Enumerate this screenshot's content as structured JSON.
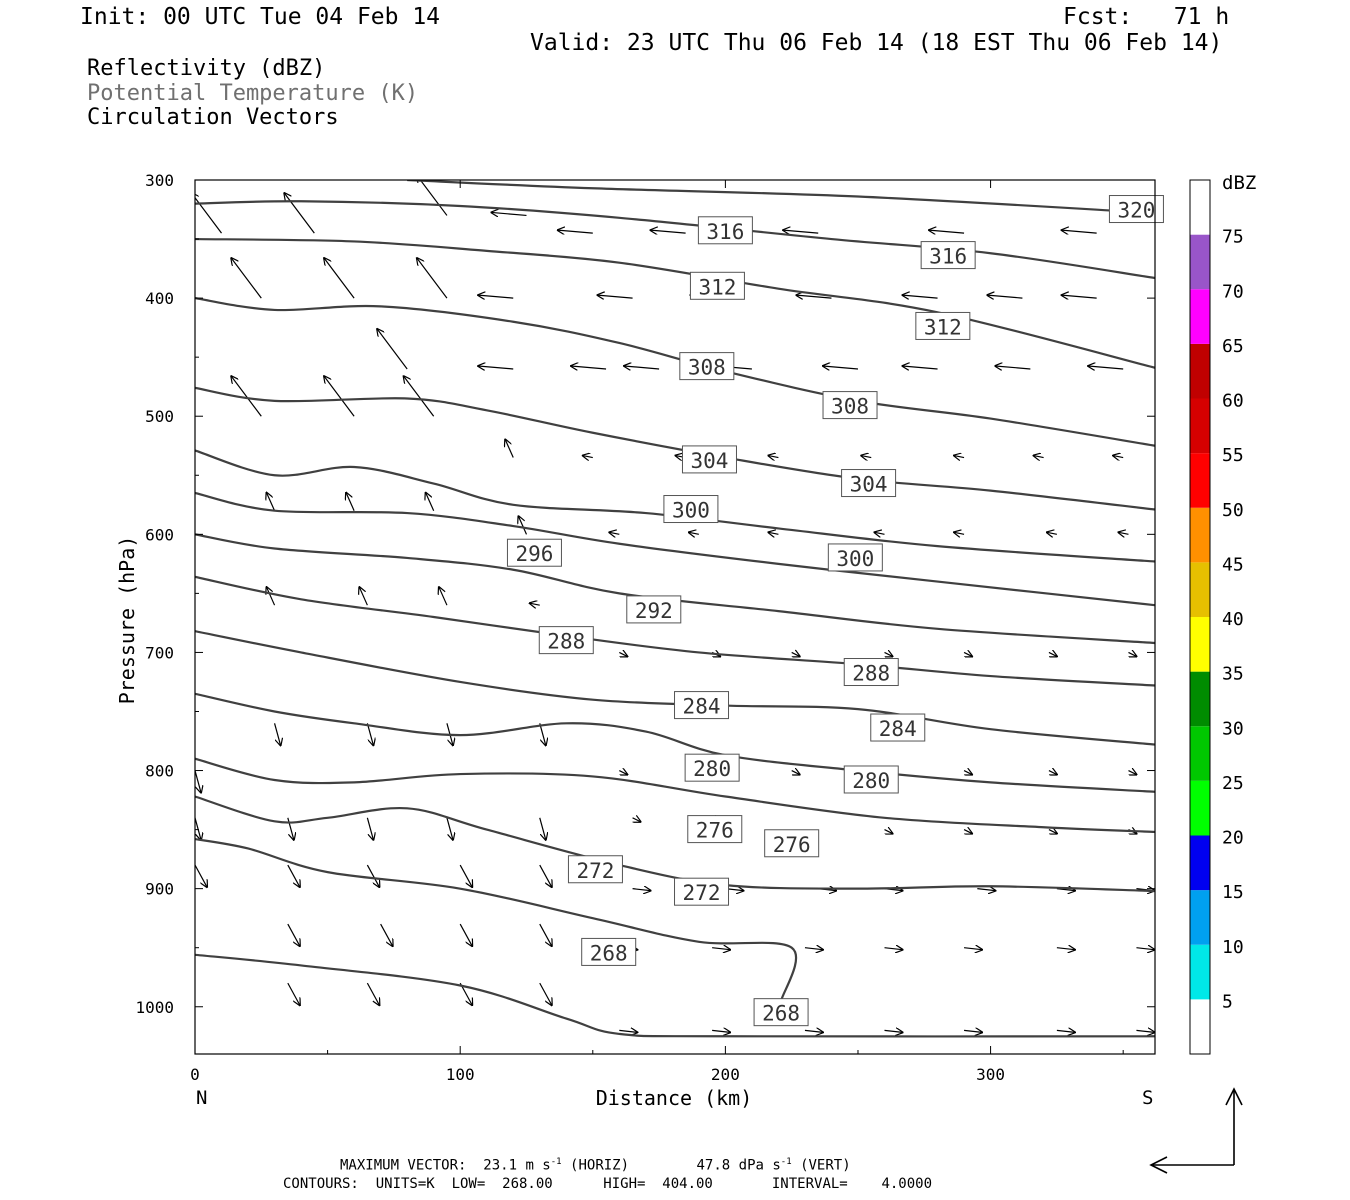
{
  "header": {
    "init": "Init: 00 UTC Tue 04 Feb 14",
    "fcst": "Fcst:   71 h",
    "valid": "Valid: 23 UTC Thu 06 Feb 14 (18 EST Thu 06 Feb 14)"
  },
  "legend_lines": {
    "reflectivity": "Reflectivity (dBZ)",
    "theta": "Potential Temperature (K)",
    "vectors": "Circulation Vectors"
  },
  "footer": {
    "max_vector_label": "MAXIMUM VECTOR:",
    "horiz_value": "23.1",
    "horiz_unit": "m s",
    "horiz_tag": "(HORIZ)",
    "vert_value": "47.8",
    "vert_unit": "dPa s",
    "vert_tag": "(VERT)",
    "contours_line": "CONTOURS:  UNITS=K  LOW=  268.00      HIGH=  404.00       INTERVAL=    4.0000"
  },
  "colors": {
    "contour": "#404040",
    "vector": "#000000",
    "colorbar": [
      "#ffffff",
      "#00e8e8",
      "#00a0f0",
      "#0000f0",
      "#00ff00",
      "#00c800",
      "#008c00",
      "#ffff00",
      "#e6c000",
      "#ff9000",
      "#ff0000",
      "#d60000",
      "#c00000",
      "#ff00ff",
      "#9955c9",
      "#ffffff"
    ]
  },
  "chart_data": {
    "type": "cross-section",
    "xlabel": "Distance (km)",
    "ylabel": "Pressure (hPa)",
    "x_end_labels": [
      "N",
      "S"
    ],
    "xlim": [
      0,
      362
    ],
    "ylim": [
      300,
      1040
    ],
    "x_ticks": [
      0,
      100,
      200,
      300
    ],
    "y_ticks": [
      300,
      400,
      500,
      600,
      700,
      800,
      900,
      1000
    ],
    "colorbar": {
      "unit": "dBZ",
      "levels": [
        5,
        10,
        15,
        20,
        25,
        30,
        35,
        40,
        45,
        50,
        55,
        60,
        65,
        70,
        75
      ]
    },
    "contours": [
      {
        "value": 320,
        "labels": [
          [
            355,
            325
          ]
        ],
        "points": [
          [
            80,
            300
          ],
          [
            150,
            307
          ],
          [
            250,
            314
          ],
          [
            362,
            328
          ]
        ]
      },
      {
        "value": 316,
        "labels": [
          [
            200,
            343
          ],
          [
            284,
            364
          ]
        ],
        "points": [
          [
            0,
            320
          ],
          [
            40,
            318
          ],
          [
            100,
            322
          ],
          [
            160,
            332
          ],
          [
            240,
            350
          ],
          [
            300,
            362
          ],
          [
            362,
            383
          ]
        ]
      },
      {
        "value": 312,
        "labels": [
          [
            197,
            390
          ],
          [
            282,
            424
          ]
        ],
        "points": [
          [
            0,
            350
          ],
          [
            60,
            352
          ],
          [
            110,
            360
          ],
          [
            160,
            370
          ],
          [
            220,
            392
          ],
          [
            280,
            412
          ],
          [
            362,
            459
          ]
        ]
      },
      {
        "value": 308,
        "labels": [
          [
            193,
            458
          ],
          [
            247,
            491
          ]
        ],
        "points": [
          [
            0,
            400
          ],
          [
            30,
            410
          ],
          [
            70,
            407
          ],
          [
            120,
            420
          ],
          [
            160,
            438
          ],
          [
            200,
            462
          ],
          [
            250,
            487
          ],
          [
            300,
            502
          ],
          [
            362,
            525
          ]
        ]
      },
      {
        "value": 304,
        "labels": [
          [
            194,
            537
          ],
          [
            254,
            557
          ]
        ],
        "points": [
          [
            0,
            476
          ],
          [
            30,
            487
          ],
          [
            80,
            485
          ],
          [
            110,
            495
          ],
          [
            150,
            514
          ],
          [
            200,
            535
          ],
          [
            250,
            553
          ],
          [
            300,
            563
          ],
          [
            362,
            579
          ]
        ]
      },
      {
        "value": 300,
        "labels": [
          [
            187,
            579
          ],
          [
            249,
            620
          ]
        ],
        "points": [
          [
            0,
            529
          ],
          [
            30,
            550
          ],
          [
            60,
            543
          ],
          [
            90,
            557
          ],
          [
            120,
            575
          ],
          [
            170,
            582
          ],
          [
            220,
            595
          ],
          [
            280,
            610
          ],
          [
            362,
            623
          ]
        ]
      },
      {
        "value": 296,
        "labels": [
          [
            128,
            616
          ]
        ],
        "points": [
          [
            0,
            565
          ],
          [
            30,
            580
          ],
          [
            80,
            582
          ],
          [
            120,
            593
          ],
          [
            160,
            608
          ],
          [
            220,
            625
          ],
          [
            280,
            640
          ],
          [
            362,
            660
          ]
        ]
      },
      {
        "value": 292,
        "labels": [
          [
            173,
            664
          ]
        ],
        "points": [
          [
            0,
            600
          ],
          [
            30,
            612
          ],
          [
            80,
            620
          ],
          [
            120,
            630
          ],
          [
            160,
            650
          ],
          [
            220,
            665
          ],
          [
            280,
            680
          ],
          [
            362,
            692
          ]
        ]
      },
      {
        "value": 288,
        "labels": [
          [
            140,
            690
          ],
          [
            255,
            717
          ]
        ],
        "points": [
          [
            0,
            636
          ],
          [
            40,
            655
          ],
          [
            90,
            670
          ],
          [
            140,
            686
          ],
          [
            190,
            700
          ],
          [
            250,
            710
          ],
          [
            300,
            720
          ],
          [
            362,
            728
          ]
        ]
      },
      {
        "value": 284,
        "labels": [
          [
            191,
            745
          ],
          [
            265,
            764
          ]
        ],
        "points": [
          [
            0,
            682
          ],
          [
            40,
            700
          ],
          [
            100,
            725
          ],
          [
            150,
            740
          ],
          [
            200,
            745
          ],
          [
            250,
            748
          ],
          [
            300,
            765
          ],
          [
            362,
            778
          ]
        ]
      },
      {
        "value": 280,
        "labels": [
          [
            195,
            798
          ],
          [
            255,
            808
          ]
        ],
        "points": [
          [
            0,
            735
          ],
          [
            30,
            750
          ],
          [
            60,
            760
          ],
          [
            100,
            770
          ],
          [
            140,
            760
          ],
          [
            170,
            767
          ],
          [
            200,
            787
          ],
          [
            250,
            800
          ],
          [
            300,
            810
          ],
          [
            362,
            818
          ]
        ]
      },
      {
        "value": 276,
        "labels": [
          [
            196,
            850
          ],
          [
            225,
            862
          ]
        ],
        "points": [
          [
            0,
            790
          ],
          [
            30,
            808
          ],
          [
            60,
            810
          ],
          [
            100,
            803
          ],
          [
            150,
            805
          ],
          [
            200,
            822
          ],
          [
            260,
            840
          ],
          [
            320,
            848
          ],
          [
            362,
            852
          ]
        ]
      },
      {
        "value": 272,
        "labels": [
          [
            151,
            884
          ],
          [
            191,
            903
          ]
        ],
        "points": [
          [
            0,
            822
          ],
          [
            30,
            843
          ],
          [
            50,
            840
          ],
          [
            80,
            832
          ],
          [
            110,
            850
          ],
          [
            160,
            880
          ],
          [
            200,
            897
          ],
          [
            250,
            900
          ],
          [
            300,
            898
          ],
          [
            362,
            902
          ]
        ]
      },
      {
        "value": 268,
        "labels": [
          [
            156,
            954
          ],
          [
            221,
            1005
          ]
        ],
        "points": [
          [
            0,
            858
          ],
          [
            20,
            866
          ],
          [
            50,
            886
          ],
          [
            100,
            900
          ],
          [
            150,
            925
          ],
          [
            190,
            945
          ],
          [
            225,
            950
          ],
          [
            221,
            995
          ]
        ]
      },
      {
        "value": 268,
        "labels": [],
        "points": [
          [
            0,
            956
          ],
          [
            40,
            965
          ],
          [
            100,
            982
          ],
          [
            140,
            1010
          ],
          [
            160,
            1023
          ],
          [
            200,
            1025
          ],
          [
            362,
            1025
          ]
        ]
      }
    ]
  }
}
